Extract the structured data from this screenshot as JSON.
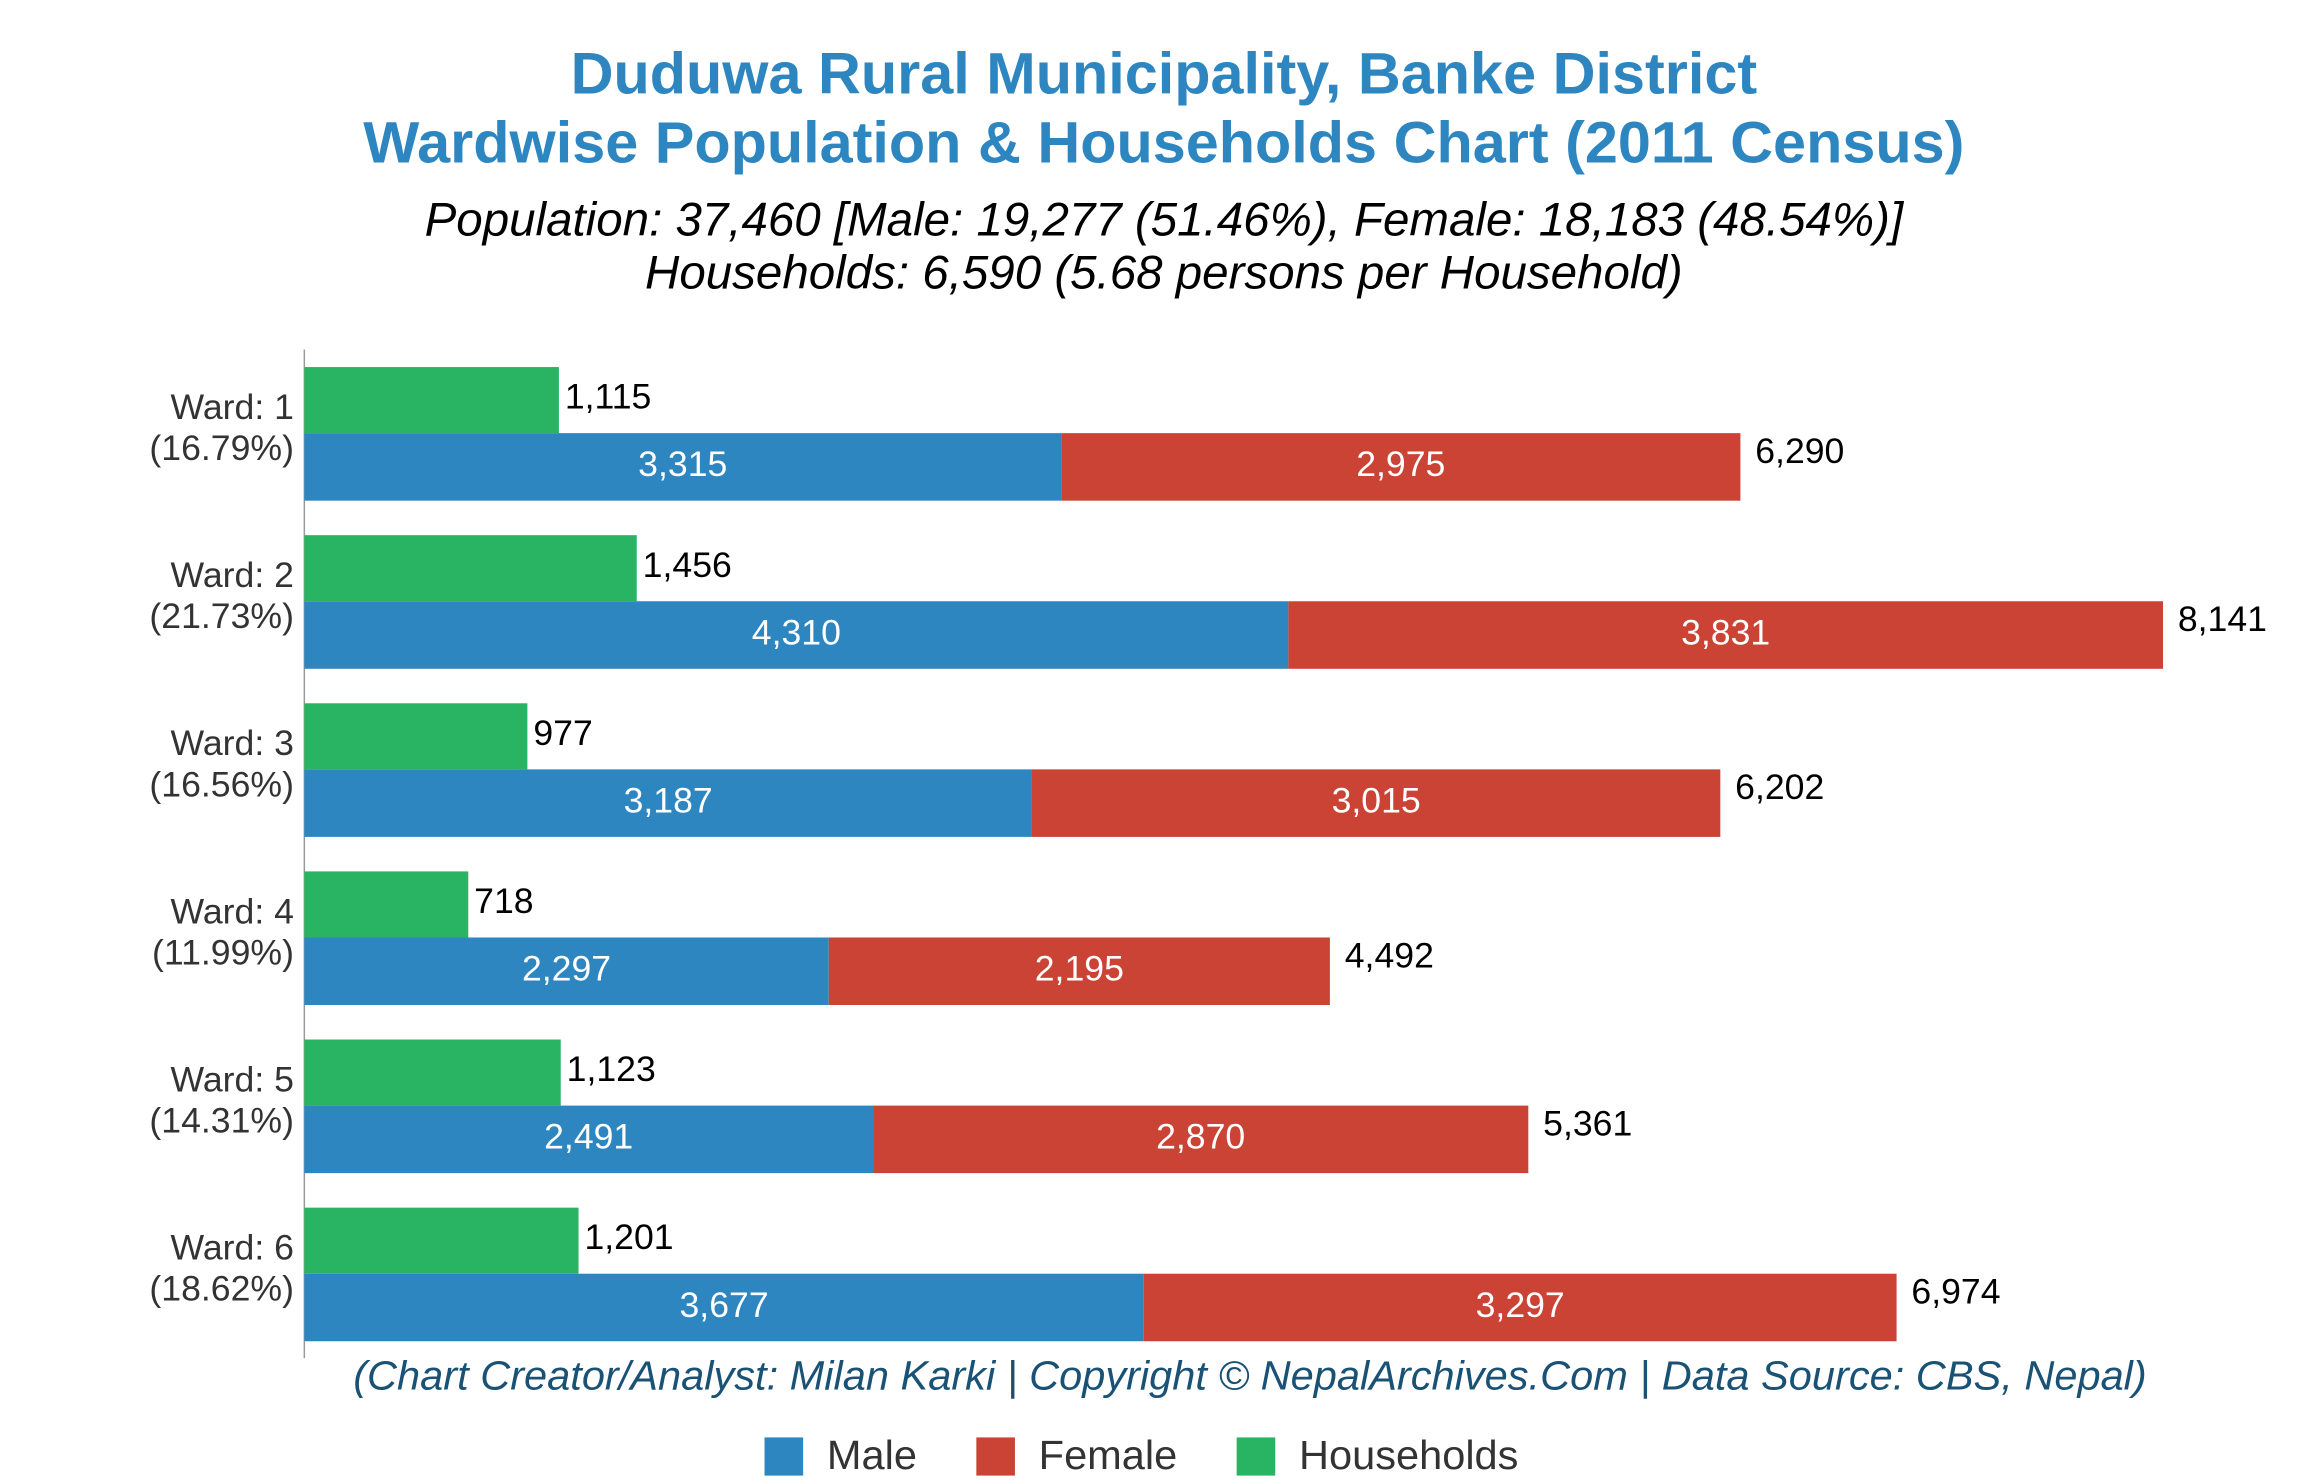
{
  "chart_data": {
    "type": "bar",
    "title": [
      "Duduwa Rural Municipality, Banke District",
      "Wardwise Population & Households Chart (2011 Census)"
    ],
    "subtitle": [
      "Population: 37,460 [Male: 19,277 (51.46%), Female: 18,183 (48.54%)]",
      "Households: 6,590 (5.68 persons per Household)"
    ],
    "footer": "(Chart Creator/Analyst: Milan Karki | Copyright © NepalArchives.Com | Data Source: CBS, Nepal)",
    "categories": [
      "Ward: 1",
      "Ward: 2",
      "Ward: 3",
      "Ward: 4",
      "Ward: 5",
      "Ward: 6"
    ],
    "shares": [
      "(16.79%)",
      "(21.73%)",
      "(16.56%)",
      "(11.99%)",
      "(14.31%)",
      "(18.62%)"
    ],
    "xlim": [
      0,
      8700
    ],
    "series": [
      {
        "name": "Male",
        "color": "#2e86c1",
        "stack": "population",
        "values": [
          3315,
          4310,
          3187,
          2297,
          2491,
          3677
        ],
        "value_labels": [
          "3,315",
          "4,310",
          "3,187",
          "2,297",
          "2,491",
          "3,677"
        ]
      },
      {
        "name": "Female",
        "color": "#cb4335",
        "stack": "population",
        "values": [
          2975,
          3831,
          3015,
          2195,
          2870,
          3297
        ],
        "value_labels": [
          "2,975",
          "3,831",
          "3,015",
          "2,195",
          "2,870",
          "3,297"
        ]
      },
      {
        "name": "Households",
        "color": "#28b463",
        "stack": "households",
        "values": [
          1115,
          1456,
          977,
          718,
          1123,
          1201
        ],
        "value_labels": [
          "1,115",
          "1,456",
          "977",
          "718",
          "1,123",
          "1,201"
        ]
      }
    ],
    "totals": {
      "values": [
        6290,
        8141,
        6202,
        4492,
        5361,
        6974
      ],
      "value_labels": [
        "6,290",
        "8,141",
        "6,202",
        "4,492",
        "5,361",
        "6,974"
      ]
    },
    "legend": "bottom"
  }
}
